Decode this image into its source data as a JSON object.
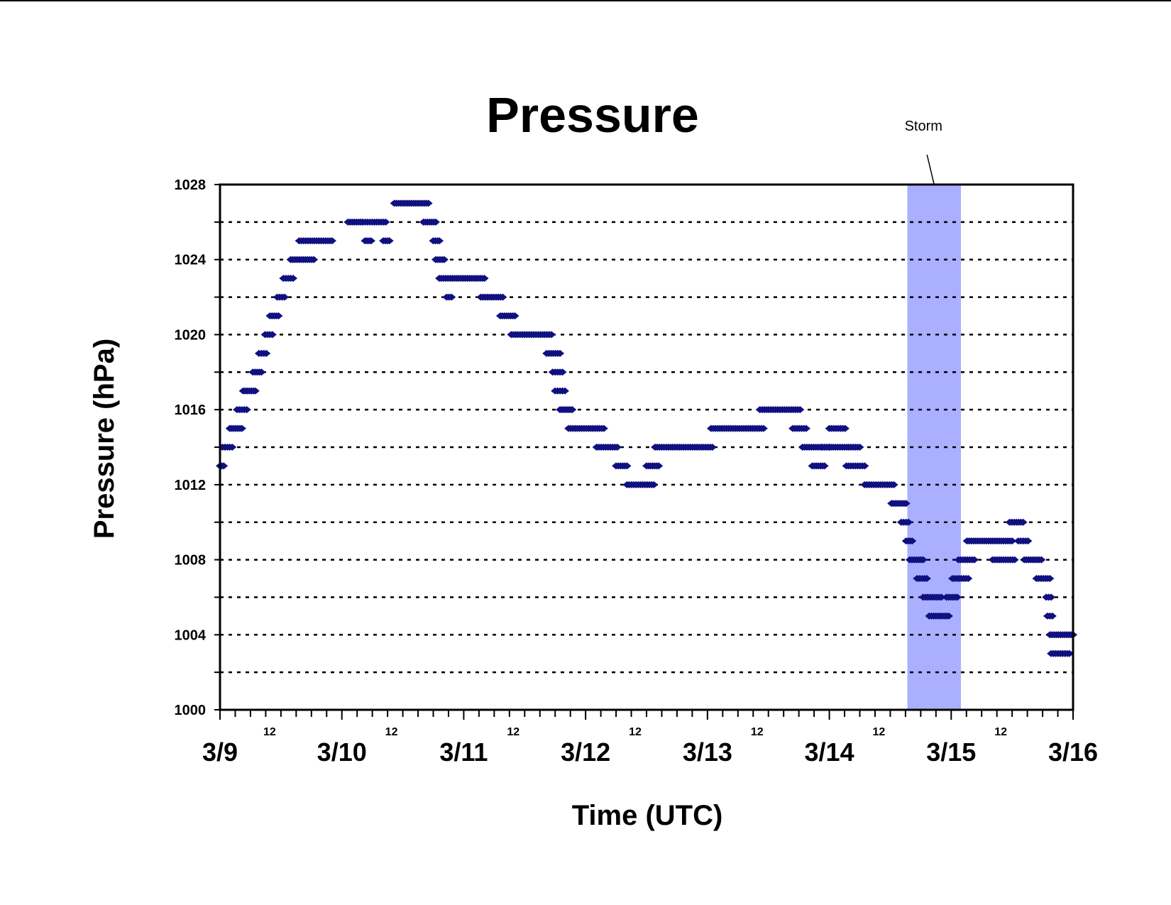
{
  "chart_data": {
    "type": "scatter",
    "title": "Pressure",
    "xlabel": "Time (UTC)",
    "ylabel": "Pressure (hPa)",
    "ylim": [
      1000,
      1028
    ],
    "y_ticks": [
      "1000",
      "1004",
      "1008",
      "1012",
      "1016",
      "1020",
      "1024",
      "1028"
    ],
    "y_gridlines_every": 2,
    "grid": "horizontal dotted",
    "x_unit": "days since 3/9 00 UTC",
    "xlim": [
      0,
      7
    ],
    "x_major_ticks": [
      {
        "x": 0,
        "label": "3/9"
      },
      {
        "x": 1,
        "label": "3/10"
      },
      {
        "x": 2,
        "label": "3/11"
      },
      {
        "x": 3,
        "label": "3/12"
      },
      {
        "x": 4,
        "label": "3/13"
      },
      {
        "x": 5,
        "label": "3/14"
      },
      {
        "x": 6,
        "label": "3/15"
      },
      {
        "x": 7,
        "label": "3/16"
      }
    ],
    "x_minor_labels": [
      {
        "x": 0.5,
        "label": "12"
      },
      {
        "x": 1.5,
        "label": "12"
      },
      {
        "x": 2.5,
        "label": "12"
      },
      {
        "x": 3.5,
        "label": "12"
      },
      {
        "x": 4.5,
        "label": "12"
      },
      {
        "x": 5.5,
        "label": "12"
      },
      {
        "x": 6.5,
        "label": "12"
      }
    ],
    "x_minor_tick_hours": 3,
    "storm_band": {
      "start": 5.64,
      "end": 6.08,
      "label": "Storm",
      "color": "#aab0ff"
    },
    "marker_color": "#101080",
    "series": [
      {
        "segments": [
          [
            0.0,
            0.03,
            1013
          ],
          [
            0.02,
            0.1,
            1014
          ],
          [
            0.08,
            0.18,
            1015
          ],
          [
            0.14,
            0.22,
            1016
          ],
          [
            0.19,
            0.29,
            1017
          ],
          [
            0.27,
            0.34,
            1018
          ],
          [
            0.32,
            0.38,
            1019
          ],
          [
            0.37,
            0.43,
            1020
          ],
          [
            0.41,
            0.48,
            1021
          ],
          [
            0.47,
            0.53,
            1022
          ],
          [
            0.52,
            0.6,
            1023
          ],
          [
            0.58,
            0.77,
            1024
          ],
          [
            0.65,
            0.92,
            1025
          ],
          [
            1.05,
            1.17,
            1026
          ],
          [
            1.17,
            1.23,
            1026
          ],
          [
            1.25,
            1.36,
            1026
          ],
          [
            1.19,
            1.24,
            1025
          ],
          [
            1.34,
            1.39,
            1025
          ],
          [
            1.43,
            1.71,
            1027
          ],
          [
            1.67,
            1.77,
            1026
          ],
          [
            1.75,
            1.8,
            1025
          ],
          [
            1.77,
            1.84,
            1024
          ],
          [
            1.8,
            2.17,
            1023
          ],
          [
            1.86,
            1.9,
            1022
          ],
          [
            2.14,
            2.32,
            1022
          ],
          [
            2.3,
            2.42,
            1021
          ],
          [
            2.39,
            2.72,
            1020
          ],
          [
            2.68,
            2.79,
            1019
          ],
          [
            2.73,
            2.81,
            1018
          ],
          [
            2.75,
            2.83,
            1017
          ],
          [
            2.79,
            2.89,
            1016
          ],
          [
            2.86,
            3.15,
            1015
          ],
          [
            3.09,
            3.26,
            1014
          ],
          [
            3.25,
            3.34,
            1013
          ],
          [
            3.34,
            3.56,
            1012
          ],
          [
            3.5,
            3.6,
            1013
          ],
          [
            3.57,
            4.04,
            1014
          ],
          [
            4.03,
            4.46,
            1015
          ],
          [
            4.43,
            4.76,
            1016
          ],
          [
            4.7,
            4.81,
            1015
          ],
          [
            4.78,
            5.25,
            1014
          ],
          [
            4.86,
            4.96,
            1013
          ],
          [
            4.94,
            5.0,
            1014
          ],
          [
            5.0,
            5.13,
            1015
          ],
          [
            5.14,
            5.29,
            1013
          ],
          [
            5.29,
            5.53,
            1012
          ],
          [
            5.51,
            5.63,
            1011
          ],
          [
            5.59,
            5.65,
            1010
          ],
          [
            5.63,
            5.68,
            1009
          ],
          [
            5.66,
            5.77,
            1008
          ],
          [
            5.72,
            5.8,
            1007
          ],
          [
            5.77,
            5.92,
            1006
          ],
          [
            5.82,
            5.98,
            1005
          ],
          [
            5.96,
            6.05,
            1006
          ],
          [
            6.01,
            6.14,
            1007
          ],
          [
            6.06,
            6.19,
            1008
          ],
          [
            6.13,
            6.5,
            1009
          ],
          [
            6.34,
            6.52,
            1008
          ],
          [
            6.48,
            6.59,
            1010
          ],
          [
            6.55,
            6.63,
            1009
          ],
          [
            6.6,
            6.74,
            1008
          ],
          [
            6.7,
            6.81,
            1007
          ],
          [
            6.78,
            6.82,
            1006
          ],
          [
            6.79,
            6.83,
            1005
          ],
          [
            6.81,
            7.0,
            1004
          ],
          [
            6.82,
            6.97,
            1003
          ]
        ]
      }
    ]
  }
}
